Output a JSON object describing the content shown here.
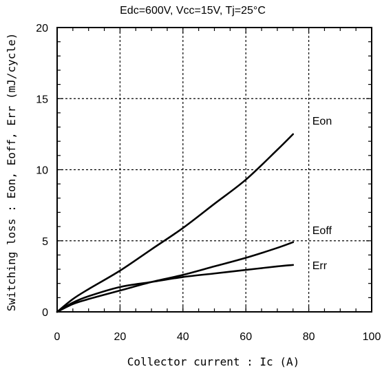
{
  "chart_data": {
    "type": "line",
    "title": "Edc=600V, Vcc=15V, Tj=25°C",
    "xlabel": "Collector current : Ic  (A)",
    "ylabel": "Switching loss : Eon, Eoff, Err   (mJ/cycle)",
    "xlim": [
      0,
      100
    ],
    "ylim": [
      0,
      20
    ],
    "xticks": [
      0,
      20,
      40,
      60,
      80,
      100
    ],
    "yticks": [
      0,
      5,
      10,
      15,
      20
    ],
    "grid": true,
    "series": [
      {
        "name": "Eon",
        "x": [
          0,
          5,
          10,
          20,
          30,
          40,
          50,
          60,
          70,
          75
        ],
        "y": [
          0,
          0.9,
          1.6,
          2.9,
          4.4,
          5.9,
          7.6,
          9.3,
          11.4,
          12.5
        ]
      },
      {
        "name": "Eoff",
        "x": [
          0,
          5,
          10,
          20,
          30,
          40,
          50,
          60,
          70,
          75
        ],
        "y": [
          0,
          0.55,
          0.9,
          1.5,
          2.1,
          2.6,
          3.2,
          3.8,
          4.5,
          4.9
        ]
      },
      {
        "name": "Err",
        "x": [
          0,
          5,
          10,
          20,
          30,
          40,
          50,
          60,
          70,
          75
        ],
        "y": [
          0,
          0.65,
          1.1,
          1.75,
          2.1,
          2.45,
          2.7,
          2.95,
          3.2,
          3.3
        ]
      }
    ]
  },
  "colors": {
    "line": "#000000",
    "grid": "#000000",
    "background": "#ffffff"
  }
}
